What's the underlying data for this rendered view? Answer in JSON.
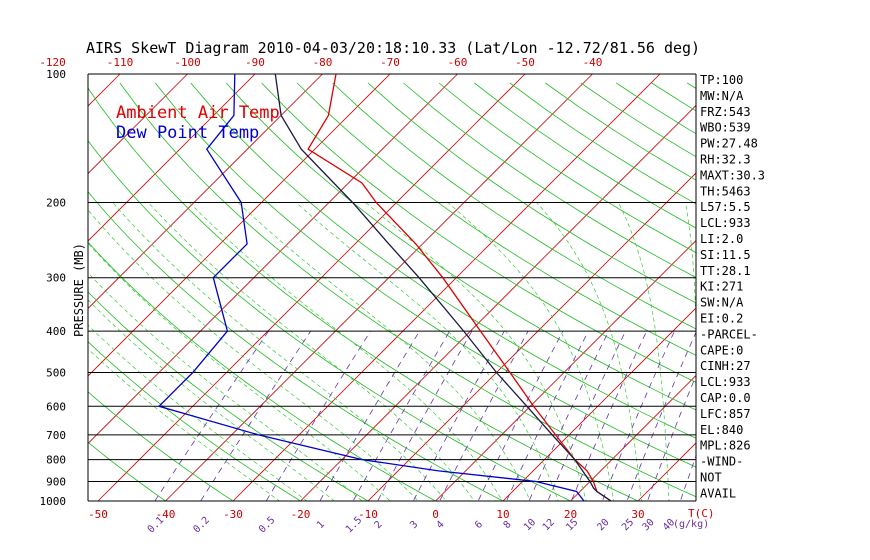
{
  "title": "AIRS SkewT Diagram 2010-04-03/20:18:10.33 (Lat/Lon -12.72/81.56 deg)",
  "colors": {
    "ambient": "#dd0000",
    "dewpoint": "#0000cc",
    "parcel": "#1a1a40",
    "isotherm": "#cc0000",
    "dry_adiabat": "#22bb22",
    "moist_adiabat": "#33cc33",
    "mixing_ratio": "#6633aa",
    "isobar": "#000000"
  },
  "chart_data": {
    "type": "line",
    "title": "AIRS SkewT Diagram 2010-04-03/20:18:10.33 (Lat/Lon -12.72/81.56 deg)",
    "ylabel": "PRESSURE (MB)",
    "xlabel": "T(C)",
    "y_scale": "log",
    "ylim": [
      1000,
      100
    ],
    "pressure_ticks": [
      100,
      200,
      300,
      400,
      500,
      600,
      700,
      800,
      900,
      1000
    ],
    "top_temp_ticks": [
      -120,
      -110,
      -100,
      -90,
      -80,
      -70,
      -60,
      -50,
      -40
    ],
    "bottom_temp_ticks": [
      -50,
      -40,
      -30,
      -20,
      -10,
      0,
      10,
      20,
      30
    ],
    "bottom_axis_end_label": "T(C)",
    "mixing_ratio_labels": [
      "0.1",
      "0.2",
      "0.5",
      "1",
      "1.5",
      "2",
      "3",
      "4",
      "6",
      "8",
      "10",
      "12",
      "15",
      "20",
      "25",
      "30",
      "40"
    ],
    "mixing_ratio_unit": "g/kg",
    "series": [
      {
        "name": "Ambient Air Temp",
        "color": "#dd0000",
        "points": [
          [
            1000,
            26
          ],
          [
            950,
            22.5
          ],
          [
            900,
            20.5
          ],
          [
            850,
            18
          ],
          [
            800,
            14.5
          ],
          [
            700,
            8
          ],
          [
            600,
            0.5
          ],
          [
            500,
            -8
          ],
          [
            400,
            -18.5
          ],
          [
            300,
            -32
          ],
          [
            250,
            -41
          ],
          [
            200,
            -53
          ],
          [
            180,
            -58
          ],
          [
            150,
            -71
          ],
          [
            125,
            -73
          ],
          [
            100,
            -78
          ]
        ]
      },
      {
        "name": "Dew Point Temp",
        "color": "#0000cc",
        "points": [
          [
            1000,
            22
          ],
          [
            950,
            19.5
          ],
          [
            900,
            12
          ],
          [
            850,
            -4
          ],
          [
            800,
            -17
          ],
          [
            700,
            -36
          ],
          [
            600,
            -55
          ],
          [
            500,
            -55
          ],
          [
            400,
            -56
          ],
          [
            300,
            -66
          ],
          [
            250,
            -66
          ],
          [
            200,
            -73
          ],
          [
            150,
            -86
          ],
          [
            125,
            -87
          ],
          [
            100,
            -93
          ]
        ]
      },
      {
        "name": "Parcel",
        "color": "#1a1a40",
        "points": [
          [
            1000,
            26
          ],
          [
            950,
            22.5
          ],
          [
            933,
            21.5
          ],
          [
            900,
            20
          ],
          [
            800,
            14.5
          ],
          [
            700,
            7.5
          ],
          [
            600,
            -0.5
          ],
          [
            500,
            -10
          ],
          [
            400,
            -21
          ],
          [
            300,
            -35.5
          ],
          [
            250,
            -45
          ],
          [
            200,
            -56.5
          ],
          [
            150,
            -72
          ],
          [
            125,
            -80
          ],
          [
            100,
            -87
          ]
        ]
      }
    ]
  },
  "legend": {
    "ambient": "Ambient Air Temp",
    "dewpoint": "Dew Point Temp"
  },
  "stats": [
    "TP:100",
    "MW:N/A",
    "FRZ:543",
    "WBO:539",
    "PW:27.48",
    "RH:32.3",
    "MAXT:30.3",
    "TH:5463",
    "L57:5.5",
    "LCL:933",
    "LI:2.0",
    "SI:11.5",
    "TT:28.1",
    "KI:271",
    "SW:N/A",
    "EI:0.2",
    "-PARCEL-",
    "CAPE:0",
    "CINH:27",
    "LCL:933",
    "CAP:0.0",
    "LFC:857",
    "EL:840",
    "MPL:826",
    "-WIND-",
    "NOT",
    "AVAIL"
  ]
}
